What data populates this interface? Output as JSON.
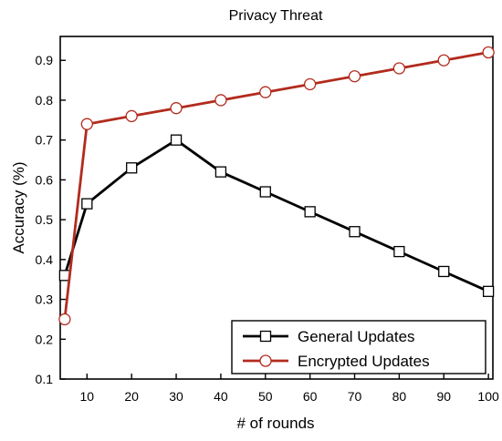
{
  "chart_data": {
    "type": "line",
    "title": "Privacy Threat",
    "xlabel": "# of rounds",
    "ylabel": "Accuracy (%)",
    "x": [
      5,
      10,
      20,
      30,
      40,
      50,
      60,
      70,
      80,
      90,
      100
    ],
    "x_ticks": [
      10,
      20,
      30,
      40,
      50,
      60,
      70,
      80,
      90,
      100
    ],
    "y_ticks": [
      0.1,
      0.2,
      0.3,
      0.4,
      0.5,
      0.6,
      0.7,
      0.8,
      0.9
    ],
    "xlim": [
      4,
      101
    ],
    "ylim": [
      0.1,
      0.96
    ],
    "grid": false,
    "legend_position": "bottom-right",
    "series": [
      {
        "name": "General Updates",
        "color": "#000000",
        "marker": "square",
        "values": [
          0.36,
          0.54,
          0.63,
          0.7,
          0.62,
          0.57,
          0.52,
          0.47,
          0.42,
          0.37,
          0.32
        ]
      },
      {
        "name": "Encrypted Updates",
        "color": "#b22b1e",
        "marker": "circle",
        "values": [
          0.25,
          0.74,
          0.76,
          0.78,
          0.8,
          0.82,
          0.84,
          0.86,
          0.88,
          0.9,
          0.92
        ]
      }
    ]
  }
}
